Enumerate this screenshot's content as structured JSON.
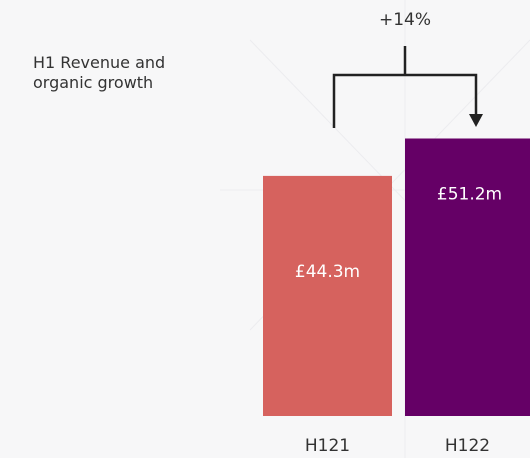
{
  "chart_data": {
    "type": "bar",
    "title": "H1 Revenue and organic growth",
    "categories": [
      "H121",
      "H122"
    ],
    "values": [
      44.3,
      51.2
    ],
    "value_labels": [
      "£44.3m",
      "£51.2m"
    ],
    "colors": [
      "#d6625e",
      "#650066"
    ],
    "annotation": "+14%"
  }
}
